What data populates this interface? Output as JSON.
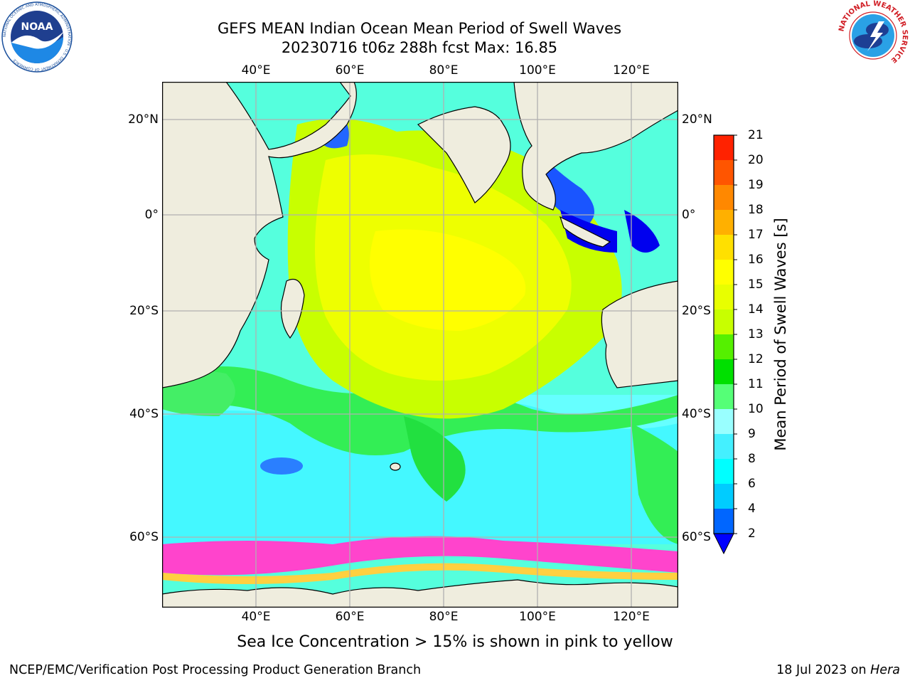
{
  "header": {
    "title_line1": "GEFS MEAN Indian Ocean Mean Period of Swell Waves",
    "title_line2": "20230716 t06z 288h fcst   Max: 16.85"
  },
  "map": {
    "lon_ticks": [
      "40°E",
      "60°E",
      "80°E",
      "100°E",
      "120°E"
    ],
    "lat_ticks": [
      "20°N",
      "0°",
      "20°S",
      "40°S",
      "60°S"
    ],
    "lon_range": [
      20,
      130
    ],
    "lat_range": [
      -72,
      28
    ],
    "colors": {
      "land": "#efedde",
      "grid": "#b0b0b0",
      "sea_ice_pink": "#ff44cc",
      "sea_ice_yellow": "#ffd040"
    }
  },
  "colorbar": {
    "label": "Mean Period of Swell Waves [s]",
    "ticks": [
      "2",
      "4",
      "6",
      "8",
      "9",
      "10",
      "11",
      "12",
      "13",
      "14",
      "15",
      "16",
      "17",
      "18",
      "19",
      "20",
      "21"
    ],
    "levels": [
      2,
      4,
      6,
      8,
      9,
      10,
      11,
      12,
      13,
      14,
      15,
      16,
      17,
      18,
      19,
      20,
      21
    ],
    "colors": [
      "#0066ff",
      "#00ccff",
      "#00ffff",
      "#44f0ff",
      "#99ffff",
      "#55ff77",
      "#00e000",
      "#55f000",
      "#c8ff00",
      "#e8ff00",
      "#ffff00",
      "#ffe000",
      "#ffb000",
      "#ff8800",
      "#ff5500",
      "#ff2200"
    ],
    "under_color": "#0000ff"
  },
  "caption": "Sea Ice Concentration > 15% is shown in pink to yellow",
  "footer": {
    "left": "NCEP/EMC/Verification Post Processing Product Generation Branch",
    "right_prefix": "18 Jul 2023 on ",
    "right_italic": "Hera"
  },
  "logos": {
    "noaa_text": "NOAA",
    "noaa_ring_text": "NATIONAL OCEANIC AND ATMOSPHERIC ADMINISTRATION · U.S. DEPARTMENT OF COMMERCE",
    "nws_ring_text": "NATIONAL WEATHER SERVICE"
  }
}
